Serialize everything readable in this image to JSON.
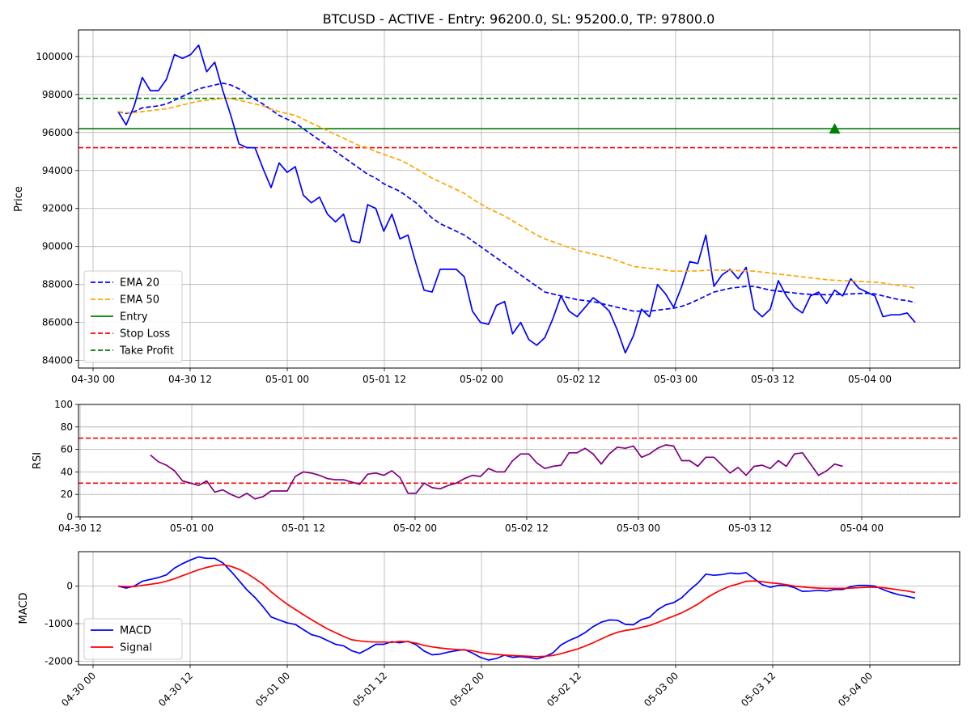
{
  "title": "BTCUSD - ACTIVE - Entry: 96200.0, SL: 95200.0, TP: 97800.0",
  "colors": {
    "price": "#0000ff",
    "ema20": "#0000ff",
    "ema50": "#ffa500",
    "entry": "#008000",
    "stop_loss": "#ff0000",
    "take_profit": "#008000",
    "rsi": "#800080",
    "macd": "#0000ff",
    "signal": "#ff0000",
    "grid": "#b0b0b0"
  },
  "chart_data": [
    {
      "type": "line",
      "panel": "price",
      "ylabel": "Price",
      "ylim": [
        83600,
        101400
      ],
      "y_ticks": [
        84000,
        86000,
        88000,
        90000,
        92000,
        94000,
        96000,
        98000,
        100000
      ],
      "x_start": "2025-04-30 04:00",
      "x_step_hours": 1,
      "x_ticks": [
        "04-30 00",
        "04-30 12",
        "05-01 00",
        "05-01 12",
        "05-02 00",
        "05-02 12",
        "05-03 00",
        "05-03 12",
        "05-04 00"
      ],
      "legend_position": "lower-left",
      "levels": [
        {
          "name": "Entry",
          "value": 96200,
          "style": "solid",
          "color_key": "entry"
        },
        {
          "name": "Stop Loss",
          "value": 95200,
          "style": "dashed",
          "color_key": "stop_loss"
        },
        {
          "name": "Take Profit",
          "value": 97800,
          "style": "dashed",
          "color_key": "take_profit"
        }
      ],
      "marker": {
        "shape": "triangle-up",
        "x": "2025-05-03 21:00",
        "y": 96200
      },
      "series": [
        {
          "name": "",
          "legend": false,
          "style": "solid",
          "color_key": "price",
          "values": [
            97100,
            96400,
            97400,
            98900,
            98200,
            98200,
            98800,
            100100,
            99900,
            100100,
            100600,
            99200,
            99700,
            98200,
            96900,
            95400,
            95200,
            95200,
            94100,
            93100,
            94400,
            93900,
            94200,
            92700,
            92300,
            92600,
            91700,
            91300,
            91700,
            90300,
            90200,
            92200,
            92000,
            90800,
            91700,
            90400,
            90600,
            89100,
            87700,
            87600,
            88800,
            88800,
            88800,
            88400,
            86600,
            86000,
            85900,
            86900,
            87100,
            85400,
            86000,
            85100,
            84800,
            85200,
            86200,
            87400,
            86600,
            86300,
            86800,
            87300,
            87000,
            86600,
            85600,
            84400,
            85300,
            86700,
            86300,
            88000,
            87500,
            86800,
            87900,
            89200,
            89100,
            90600,
            87900,
            88500,
            88800,
            88300,
            88900,
            86700,
            86300,
            86700,
            88200,
            87400,
            86800,
            86500,
            87400,
            87600,
            87000,
            87700,
            87400,
            88300,
            87800,
            87600,
            87400,
            86300,
            86400,
            86400,
            86500,
            86000
          ]
        },
        {
          "name": "EMA 20",
          "legend": true,
          "style": "dashed",
          "color_key": "ema20",
          "values": [
            97100,
            97000,
            97100,
            97300,
            97350,
            97400,
            97500,
            97700,
            97900,
            98100,
            98300,
            98400,
            98500,
            98600,
            98500,
            98300,
            98000,
            97750,
            97500,
            97200,
            96900,
            96700,
            96500,
            96200,
            95900,
            95600,
            95300,
            95000,
            94700,
            94400,
            94100,
            93800,
            93600,
            93300,
            93100,
            92900,
            92600,
            92300,
            91900,
            91500,
            91200,
            91000,
            90800,
            90600,
            90300,
            90000,
            89700,
            89400,
            89100,
            88800,
            88500,
            88200,
            87900,
            87600,
            87500,
            87400,
            87300,
            87200,
            87150,
            87100,
            87000,
            86900,
            86800,
            86700,
            86600,
            86600,
            86600,
            86650,
            86700,
            86750,
            86850,
            87000,
            87200,
            87400,
            87600,
            87700,
            87800,
            87850,
            87900,
            87900,
            87800,
            87700,
            87650,
            87600,
            87550,
            87500,
            87480,
            87470,
            87460,
            87470,
            87480,
            87500,
            87520,
            87540,
            87500,
            87400,
            87300,
            87200,
            87150,
            87050
          ]
        },
        {
          "name": "EMA 50",
          "legend": true,
          "style": "dashed",
          "color_key": "ema50",
          "values": [
            97100,
            97050,
            97050,
            97100,
            97150,
            97200,
            97250,
            97350,
            97450,
            97550,
            97650,
            97700,
            97750,
            97800,
            97780,
            97700,
            97600,
            97500,
            97400,
            97250,
            97100,
            97000,
            96900,
            96700,
            96500,
            96300,
            96100,
            95900,
            95700,
            95500,
            95300,
            95200,
            95000,
            94850,
            94700,
            94550,
            94350,
            94100,
            93850,
            93600,
            93400,
            93200,
            93000,
            92800,
            92500,
            92250,
            92000,
            91800,
            91600,
            91350,
            91100,
            90850,
            90600,
            90400,
            90250,
            90100,
            89950,
            89800,
            89700,
            89600,
            89500,
            89400,
            89250,
            89100,
            88950,
            88900,
            88850,
            88800,
            88750,
            88700,
            88700,
            88700,
            88720,
            88740,
            88760,
            88750,
            88740,
            88730,
            88720,
            88700,
            88650,
            88600,
            88550,
            88500,
            88450,
            88400,
            88350,
            88300,
            88250,
            88220,
            88200,
            88180,
            88160,
            88140,
            88120,
            88080,
            88000,
            87950,
            87900,
            87800
          ]
        }
      ]
    },
    {
      "type": "line",
      "panel": "rsi",
      "ylabel": "RSI",
      "ylim": [
        0,
        100
      ],
      "y_ticks": [
        0,
        20,
        40,
        60,
        80,
        100
      ],
      "x_ticks": [
        "04-30 12",
        "05-01 00",
        "05-01 12",
        "05-02 00",
        "05-02 12",
        "05-03 00",
        "05-03 12",
        "05-04 00"
      ],
      "levels": [
        {
          "name": "",
          "value": 70,
          "style": "dashed",
          "color_key": "stop_loss"
        },
        {
          "name": "",
          "value": 30,
          "style": "dashed",
          "color_key": "stop_loss"
        }
      ],
      "series": [
        {
          "name": "",
          "legend": false,
          "style": "solid",
          "color_key": "rsi",
          "x_offset": 4,
          "values": [
            55,
            49,
            46,
            41,
            32,
            30,
            28,
            32,
            22,
            24,
            20,
            17,
            21,
            16,
            18,
            23,
            23,
            23,
            36,
            40,
            39,
            37,
            34,
            33,
            33,
            31,
            29,
            38,
            39,
            37,
            41,
            35,
            21,
            21,
            30,
            26,
            25,
            28,
            30,
            34,
            37,
            36,
            43,
            40,
            40,
            50,
            56,
            56,
            48,
            43,
            45,
            46,
            57,
            57,
            61,
            56,
            47,
            56,
            62,
            61,
            63,
            53,
            56,
            61,
            64,
            63,
            50,
            50,
            45,
            53,
            53,
            46,
            39,
            44,
            37,
            45,
            46,
            43,
            50,
            45,
            56,
            57,
            47,
            37,
            41,
            47,
            45
          ]
        }
      ]
    },
    {
      "type": "line",
      "panel": "macd",
      "ylabel": "MACD",
      "ylim": [
        -2100,
        920
      ],
      "y_ticks": [
        -2000,
        -1000,
        0
      ],
      "x_ticks": [
        "04-30 00",
        "04-30 12",
        "05-01 00",
        "05-01 12",
        "05-02 00",
        "05-02 12",
        "05-03 00",
        "05-03 12",
        "05-04 00"
      ],
      "legend_position": "lower-left",
      "series": [
        {
          "name": "MACD",
          "legend": true,
          "style": "solid",
          "color_key": "macd",
          "values": [
            0,
            -50,
            0,
            130,
            180,
            230,
            300,
            480,
            600,
            700,
            780,
            740,
            740,
            620,
            400,
            150,
            -100,
            -300,
            -550,
            -820,
            -900,
            -980,
            -1020,
            -1160,
            -1290,
            -1350,
            -1450,
            -1550,
            -1590,
            -1720,
            -1790,
            -1680,
            -1550,
            -1550,
            -1480,
            -1510,
            -1470,
            -1560,
            -1730,
            -1830,
            -1810,
            -1760,
            -1720,
            -1690,
            -1780,
            -1900,
            -1970,
            -1930,
            -1840,
            -1900,
            -1880,
            -1900,
            -1940,
            -1880,
            -1780,
            -1570,
            -1450,
            -1360,
            -1240,
            -1080,
            -960,
            -900,
            -910,
            -1020,
            -1030,
            -890,
            -830,
            -630,
            -500,
            -440,
            -310,
            -100,
            80,
            320,
            290,
            310,
            350,
            330,
            360,
            200,
            40,
            -30,
            20,
            20,
            -40,
            -140,
            -130,
            -110,
            -130,
            -90,
            -90,
            -10,
            20,
            20,
            0,
            -90,
            -170,
            -230,
            -270,
            -320
          ]
        },
        {
          "name": "Signal",
          "legend": true,
          "style": "solid",
          "color_key": "signal",
          "values": [
            0,
            -10,
            -10,
            20,
            50,
            80,
            130,
            200,
            280,
            360,
            440,
            500,
            550,
            570,
            530,
            450,
            340,
            200,
            50,
            -150,
            -320,
            -480,
            -620,
            -760,
            -890,
            -1020,
            -1140,
            -1240,
            -1340,
            -1430,
            -1460,
            -1480,
            -1490,
            -1490,
            -1500,
            -1470,
            -1480,
            -1520,
            -1580,
            -1620,
            -1650,
            -1670,
            -1690,
            -1700,
            -1720,
            -1770,
            -1800,
            -1820,
            -1840,
            -1850,
            -1860,
            -1870,
            -1880,
            -1870,
            -1850,
            -1800,
            -1740,
            -1680,
            -1600,
            -1510,
            -1410,
            -1310,
            -1230,
            -1180,
            -1150,
            -1100,
            -1050,
            -970,
            -880,
            -800,
            -710,
            -600,
            -480,
            -330,
            -200,
            -90,
            0,
            60,
            130,
            140,
            120,
            90,
            70,
            40,
            0,
            -20,
            -40,
            -50,
            -60,
            -60,
            -60,
            -50,
            -40,
            -30,
            -30,
            -40,
            -70,
            -100,
            -130,
            -170
          ]
        }
      ]
    }
  ]
}
